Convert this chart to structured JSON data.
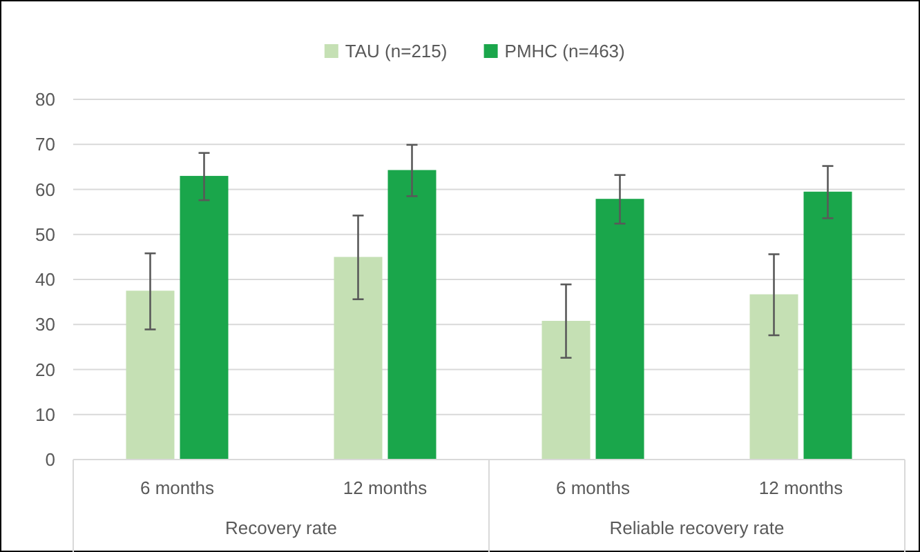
{
  "chart_data": {
    "type": "bar",
    "categories": [
      "6 months",
      "12 months",
      "6 months",
      "12 months"
    ],
    "annotations": [
      "Recovery rate",
      "Reliable recovery rate"
    ],
    "series": [
      {
        "name": "TAU (n=215)",
        "color": "#c5e0b4",
        "values": [
          37.5,
          45.0,
          30.8,
          36.7
        ],
        "errors": [
          [
            28.9,
            45.8
          ],
          [
            35.6,
            54.2
          ],
          [
            22.6,
            38.9
          ],
          [
            27.6,
            45.6
          ]
        ]
      },
      {
        "name": "PMHC (n=463)",
        "color": "#1aa64b",
        "values": [
          63.0,
          64.3,
          57.9,
          59.5
        ],
        "errors": [
          [
            57.6,
            68.1
          ],
          [
            58.5,
            69.9
          ],
          [
            52.4,
            63.2
          ],
          [
            53.6,
            65.2
          ]
        ]
      }
    ],
    "ylim": [
      0,
      80
    ],
    "yticks": [
      0,
      10,
      20,
      30,
      40,
      50,
      60,
      70,
      80
    ],
    "grid": "y",
    "legend": "top"
  }
}
